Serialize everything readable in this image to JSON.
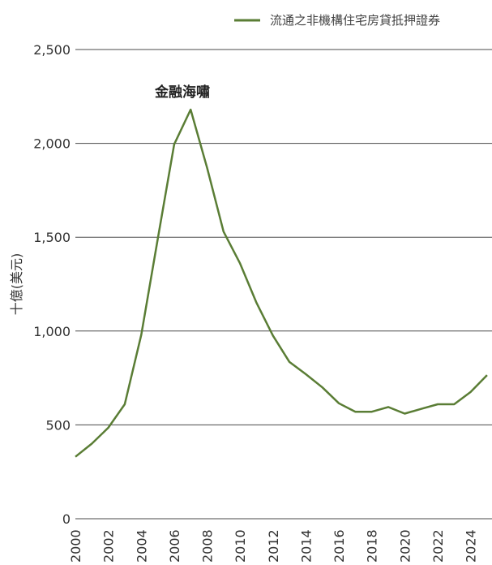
{
  "chart_data": {
    "type": "line",
    "title": "",
    "xlabel": "",
    "ylabel": "十億(美元)",
    "ylim": [
      0,
      2500
    ],
    "y_ticks": [
      "0",
      "500",
      "1,000",
      "1,500",
      "2,000",
      "2,500"
    ],
    "x_ticks": [
      "2000",
      "2002",
      "2004",
      "2006",
      "2008",
      "2010",
      "2012",
      "2014",
      "2016",
      "2018",
      "2020",
      "2022",
      "2024"
    ],
    "grid": "horizontal",
    "legend_position": "top-right",
    "series": [
      {
        "name": "流通之非機構住宅房貸抵押證券",
        "color": "#5a7d35",
        "x": [
          2000,
          2001,
          2002,
          2003,
          2004,
          2005,
          2006,
          2007,
          2008,
          2009,
          2010,
          2011,
          2012,
          2013,
          2014,
          2015,
          2016,
          2017,
          2018,
          2019,
          2020,
          2021,
          2022,
          2023,
          2024,
          2025
        ],
        "values": [
          330,
          400,
          485,
          610,
          980,
          1490,
          1995,
          2180,
          1870,
          1530,
          1360,
          1150,
          975,
          835,
          770,
          700,
          615,
          570,
          570,
          595,
          560,
          585,
          610,
          610,
          675,
          765
        ]
      }
    ],
    "annotations": [
      {
        "text": "金融海嘯",
        "x": 2006.5,
        "y": 2250
      }
    ]
  }
}
